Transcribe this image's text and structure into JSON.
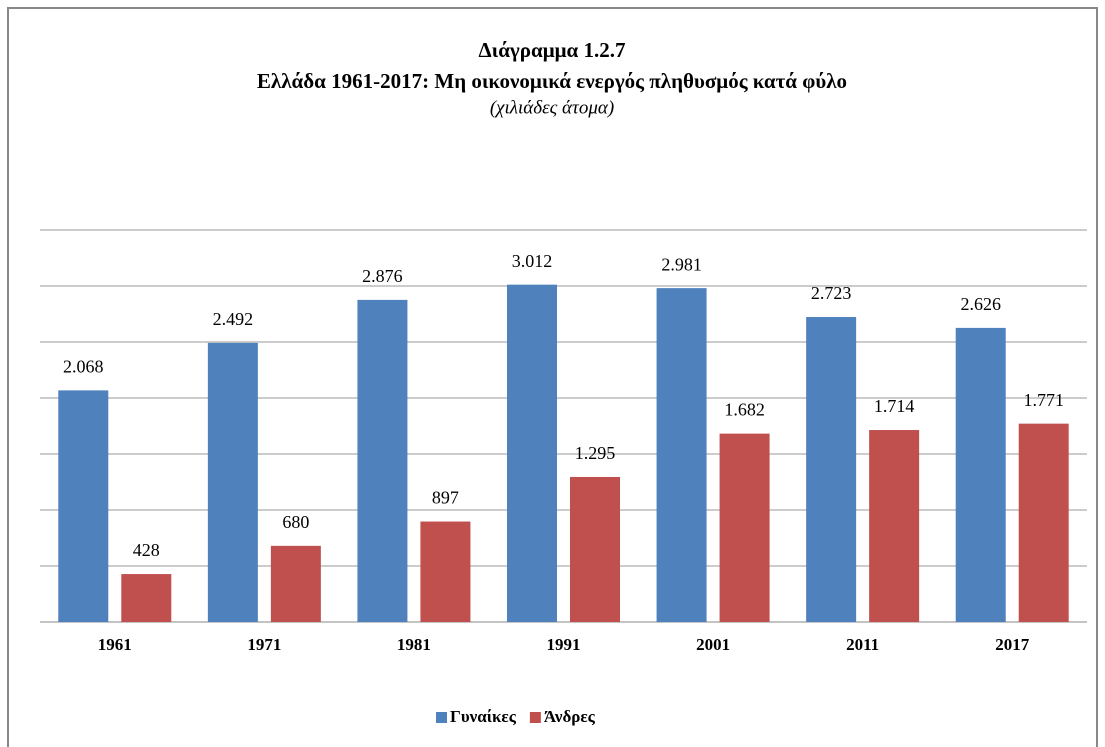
{
  "chart_data": {
    "type": "bar",
    "title": "Διάγραμμα 1.2.7",
    "subtitle": "Ελλάδα 1961-2017: Μη οικονομικά ενεργός πληθυσμός κατά φύλο",
    "unit_note": "(χιλιάδες άτομα)",
    "categories": [
      "1961",
      "1971",
      "1981",
      "1991",
      "2001",
      "2011",
      "2017"
    ],
    "series": [
      {
        "name": "Γυναίκες",
        "color": "#4f81bd",
        "values": [
          2068,
          2492,
          2876,
          3012,
          2981,
          2723,
          2626
        ],
        "value_labels": [
          "2.068",
          "2.492",
          "2.876",
          "3.012",
          "2.981",
          "2.723",
          "2.626"
        ]
      },
      {
        "name": "Άνδρες",
        "color": "#c0504d",
        "values": [
          428,
          680,
          897,
          1295,
          1682,
          1714,
          1771
        ],
        "value_labels": [
          "428",
          "680",
          "897",
          "1.295",
          "1.682",
          "1.714",
          "1.771"
        ]
      }
    ],
    "ylim": [
      0,
      3500
    ],
    "yticks": [
      0,
      500,
      1000,
      1500,
      2000,
      2500,
      3000,
      3500
    ],
    "grid": true,
    "legend": "bottom"
  }
}
